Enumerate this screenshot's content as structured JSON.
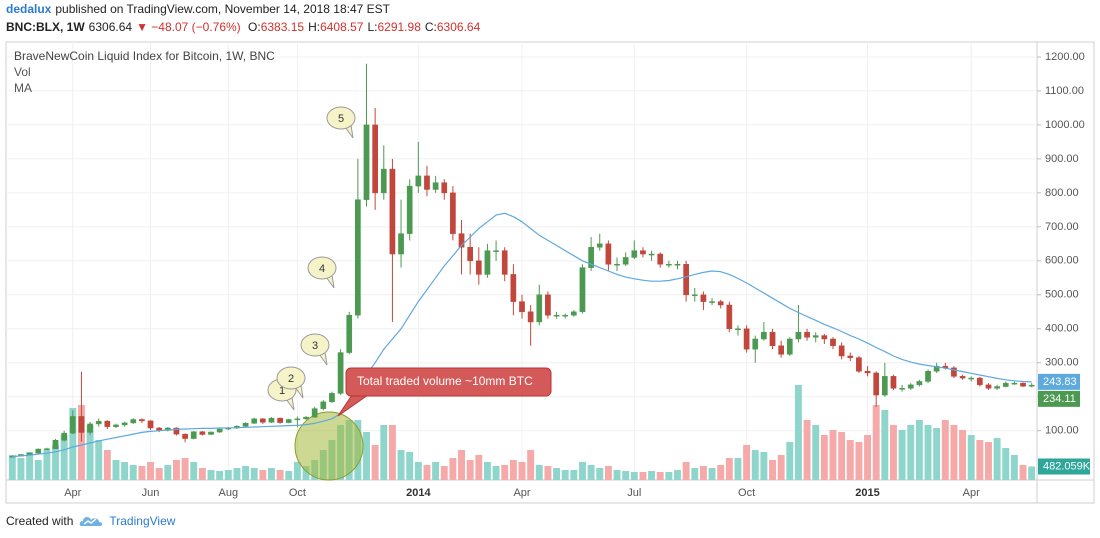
{
  "header": {
    "author": "dedalux",
    "published": "published on TradingView.com, November 14, 2018 18:47 EST",
    "symbol": "BNC:BLX, 1W",
    "last": "6306.64",
    "change": "▼ −48.07 (−0.76%)",
    "ohlc": [
      {
        "label": "O:",
        "value": "6383.15"
      },
      {
        "label": "H:",
        "value": "6408.57"
      },
      {
        "label": "L:",
        "value": "6291.98"
      },
      {
        "label": "C:",
        "value": "6306.64"
      }
    ]
  },
  "footer": {
    "created": "Created with",
    "brand": "TradingView"
  },
  "chart_data": {
    "type": "candlestick",
    "title": "BraveNewCoin Liquid Index for Bitcoin, 1W, BNC",
    "up_color": "#4c9a52",
    "down_color": "#c1473c",
    "grid": true,
    "ylim": [
      -45,
      1244
    ],
    "yticks": [
      {
        "value": 100,
        "label": "100.00"
      },
      {
        "value": 200,
        "label": "200.00"
      },
      {
        "value": 300,
        "label": "300.00"
      },
      {
        "value": 400,
        "label": "400.00"
      },
      {
        "value": 500,
        "label": "500.00"
      },
      {
        "value": 600,
        "label": "600.00"
      },
      {
        "value": 700,
        "label": "700.00"
      },
      {
        "value": 800,
        "label": "800.00"
      },
      {
        "value": 900,
        "label": "900.00"
      },
      {
        "value": 1000,
        "label": "1000.00"
      },
      {
        "value": 1100,
        "label": "1100.00"
      },
      {
        "value": 1200,
        "label": "1200.00"
      }
    ],
    "categories": [
      null,
      null,
      null,
      null,
      null,
      null,
      null,
      "Apr",
      null,
      null,
      null,
      null,
      null,
      null,
      null,
      null,
      "Jun",
      null,
      null,
      null,
      null,
      null,
      null,
      null,
      null,
      "Aug",
      null,
      null,
      null,
      null,
      null,
      null,
      null,
      "Oct",
      null,
      null,
      null,
      null,
      null,
      null,
      null,
      null,
      null,
      null,
      null,
      null,
      null,
      "2014",
      null,
      null,
      null,
      null,
      null,
      null,
      null,
      null,
      null,
      null,
      null,
      "Apr",
      null,
      null,
      null,
      null,
      null,
      null,
      null,
      null,
      null,
      null,
      null,
      null,
      "Jul",
      null,
      null,
      null,
      null,
      null,
      null,
      null,
      null,
      null,
      null,
      null,
      null,
      "Oct",
      null,
      null,
      null,
      null,
      null,
      null,
      null,
      null,
      null,
      null,
      null,
      null,
      null,
      "2015",
      null,
      null,
      null,
      null,
      null,
      null,
      null,
      null,
      null,
      null,
      null,
      "Apr",
      null,
      null,
      null,
      null,
      null,
      null,
      null
    ],
    "open": [
      22,
      25,
      30,
      34,
      46,
      47,
      72,
      93,
      142,
      95,
      120,
      128,
      112,
      117,
      123,
      133,
      129,
      108,
      101,
      108,
      90,
      77,
      97,
      89,
      96,
      105,
      108,
      113,
      122,
      135,
      125,
      137,
      124,
      133,
      135,
      140,
      165,
      185,
      210,
      330,
      440,
      780,
      1000,
      800,
      870,
      620,
      680,
      820,
      850,
      810,
      830,
      800,
      680,
      640,
      600,
      560,
      630,
      630,
      560,
      480,
      450,
      420,
      500,
      440,
      440,
      440,
      450,
      580,
      640,
      650,
      590,
      590,
      610,
      630,
      620,
      620,
      590,
      590,
      590,
      500,
      500,
      480,
      480,
      470,
      400,
      400,
      340,
      370,
      390,
      350,
      325,
      370,
      390,
      375,
      380,
      370,
      350,
      320,
      315,
      275,
      270,
      205,
      260,
      225,
      225,
      235,
      245,
      275,
      290,
      285,
      260,
      255,
      255,
      235,
      225,
      230,
      240,
      240,
      231
    ],
    "high": [
      27,
      31,
      36,
      48,
      50,
      76,
      100,
      160,
      274,
      126,
      136,
      131,
      121,
      126,
      137,
      136,
      131,
      111,
      111,
      110,
      92,
      99,
      99,
      98,
      107,
      111,
      116,
      125,
      138,
      137,
      140,
      139,
      135,
      142,
      143,
      170,
      190,
      215,
      340,
      450,
      900,
      1180,
      1050,
      940,
      900,
      780,
      840,
      950,
      880,
      850,
      840,
      820,
      720,
      680,
      640,
      650,
      660,
      640,
      590,
      500,
      470,
      530,
      510,
      450,
      445,
      455,
      590,
      670,
      680,
      660,
      610,
      625,
      660,
      640,
      630,
      625,
      600,
      600,
      600,
      520,
      510,
      490,
      485,
      480,
      410,
      410,
      380,
      420,
      400,
      365,
      375,
      470,
      400,
      390,
      385,
      375,
      360,
      330,
      320,
      290,
      275,
      300,
      265,
      235,
      240,
      250,
      280,
      300,
      300,
      290,
      265,
      260,
      258,
      240,
      235,
      245,
      245,
      242,
      240
    ],
    "low": [
      21,
      24,
      29,
      33,
      43,
      46,
      68,
      90,
      68,
      88,
      112,
      105,
      108,
      112,
      120,
      123,
      102,
      96,
      98,
      86,
      66,
      75,
      86,
      87,
      94,
      102,
      105,
      111,
      120,
      120,
      123,
      121,
      122,
      110,
      132,
      138,
      160,
      182,
      205,
      325,
      430,
      760,
      750,
      780,
      420,
      580,
      660,
      800,
      790,
      800,
      780,
      660,
      560,
      560,
      530,
      550,
      600,
      540,
      440,
      430,
      350,
      410,
      430,
      430,
      430,
      435,
      445,
      570,
      630,
      570,
      570,
      585,
      605,
      610,
      600,
      580,
      580,
      575,
      480,
      480,
      455,
      470,
      460,
      390,
      380,
      330,
      300,
      365,
      340,
      315,
      320,
      360,
      365,
      360,
      355,
      340,
      310,
      305,
      270,
      260,
      170,
      200,
      220,
      215,
      220,
      230,
      240,
      270,
      280,
      255,
      250,
      245,
      230,
      220,
      220,
      228,
      235,
      229,
      228
    ],
    "close": [
      25,
      30,
      34,
      46,
      47,
      72,
      93,
      142,
      95,
      120,
      128,
      112,
      117,
      123,
      133,
      129,
      108,
      101,
      108,
      90,
      77,
      97,
      89,
      96,
      105,
      108,
      113,
      122,
      135,
      125,
      137,
      124,
      133,
      135,
      140,
      165,
      185,
      210,
      330,
      440,
      780,
      1000,
      800,
      870,
      620,
      680,
      820,
      850,
      810,
      830,
      800,
      680,
      640,
      600,
      560,
      630,
      630,
      560,
      480,
      450,
      420,
      500,
      440,
      440,
      440,
      450,
      580,
      640,
      650,
      590,
      590,
      610,
      630,
      620,
      620,
      590,
      590,
      590,
      500,
      500,
      480,
      480,
      470,
      400,
      400,
      340,
      370,
      390,
      350,
      325,
      370,
      390,
      375,
      380,
      370,
      350,
      320,
      315,
      275,
      270,
      205,
      260,
      225,
      225,
      235,
      245,
      275,
      290,
      285,
      260,
      255,
      255,
      235,
      225,
      230,
      240,
      240,
      231,
      234.11
    ],
    "volume": {
      "name": "Vol",
      "up_color": "#8ed6cc",
      "down_color": "#f5a9a9",
      "label_color": "#2ea69a",
      "lim": [
        0,
        5000000
      ],
      "last_label": "482.059K",
      "values": [
        893000,
        786000,
        1000000,
        714000,
        1071000,
        1250000,
        1607000,
        2571000,
        2679000,
        1964000,
        1429000,
        1071000,
        714000,
        643000,
        536000,
        500000,
        643000,
        429000,
        536000,
        714000,
        786000,
        643000,
        429000,
        357000,
        321000,
        357000,
        429000,
        500000,
        429000,
        357000,
        429000,
        357000,
        321000,
        643000,
        500000,
        714000,
        1071000,
        1429000,
        1964000,
        2143000,
        2143000,
        1714000,
        1250000,
        1964000,
        1964000,
        1071000,
        1000000,
        643000,
        536000,
        643000,
        500000,
        786000,
        1071000,
        714000,
        893000,
        643000,
        500000,
        536000,
        714000,
        643000,
        1071000,
        536000,
        500000,
        429000,
        357000,
        357000,
        643000,
        536000,
        429000,
        500000,
        357000,
        321000,
        286000,
        286000,
        321000,
        286000,
        286000,
        357000,
        643000,
        429000,
        500000,
        429000,
        536000,
        786000,
        786000,
        1250000,
        1071000,
        1000000,
        714000,
        893000,
        1357000,
        3393000,
        2143000,
        1964000,
        1607000,
        1786000,
        1714000,
        1429000,
        1357000,
        1607000,
        2679000,
        2500000,
        1964000,
        1786000,
        1964000,
        2143000,
        1964000,
        1857000,
        2143000,
        1964000,
        1786000,
        1607000,
        1429000,
        1357000,
        1500000,
        1143000,
        893000,
        536000,
        482059
      ]
    },
    "ma": {
      "name": "MA",
      "color": "#5ea9dd",
      "values": [
        24,
        26,
        28,
        31,
        34,
        38,
        44,
        52,
        58,
        64,
        70,
        75,
        80,
        85,
        90,
        95,
        98,
        100,
        102,
        104,
        105,
        106,
        107,
        107,
        108,
        108,
        109,
        110,
        111,
        112,
        113,
        114,
        115,
        116,
        118,
        122,
        128,
        135,
        150,
        175,
        215,
        265,
        300,
        340,
        370,
        400,
        440,
        480,
        515,
        550,
        585,
        615,
        645,
        670,
        695,
        715,
        735,
        740,
        730,
        715,
        695,
        675,
        660,
        645,
        630,
        615,
        600,
        590,
        580,
        570,
        560,
        552,
        547,
        543,
        540,
        540,
        542,
        547,
        553,
        560,
        566,
        570,
        568,
        560,
        548,
        535,
        520,
        505,
        490,
        475,
        460,
        448,
        436,
        425,
        413,
        403,
        392,
        380,
        370,
        358,
        345,
        333,
        320,
        310,
        302,
        296,
        292,
        288,
        284,
        279,
        274,
        269,
        264,
        259,
        254,
        250,
        247,
        245,
        243.83
      ]
    },
    "annotations": [
      "1",
      "2",
      "3",
      "4",
      "5",
      "Total traded volume ~10mm BTC"
    ]
  }
}
